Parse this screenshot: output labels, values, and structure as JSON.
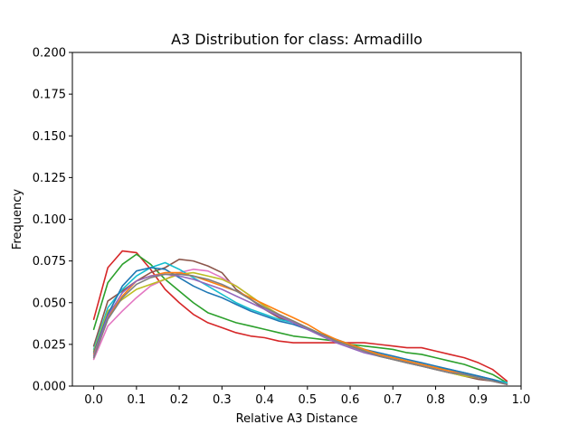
{
  "chart_data": {
    "type": "line",
    "title": "A3 Distribution for class: Armadillo",
    "xlabel": "Relative A3 Distance",
    "ylabel": "Frequency",
    "xlim": [
      -0.05,
      1.0
    ],
    "ylim": [
      0.0,
      0.2
    ],
    "xticks": [
      "0.0",
      "0.1",
      "0.2",
      "0.3",
      "0.4",
      "0.5",
      "0.6",
      "0.7",
      "0.8",
      "0.9",
      "1.0"
    ],
    "yticks": [
      "0.000",
      "0.025",
      "0.050",
      "0.075",
      "0.100",
      "0.125",
      "0.150",
      "0.175",
      "0.200"
    ],
    "grid": false,
    "legend": "none",
    "x": [
      0.0,
      0.033,
      0.067,
      0.1,
      0.133,
      0.167,
      0.2,
      0.233,
      0.267,
      0.3,
      0.333,
      0.367,
      0.4,
      0.433,
      0.467,
      0.5,
      0.533,
      0.567,
      0.6,
      0.633,
      0.667,
      0.7,
      0.733,
      0.767,
      0.8,
      0.833,
      0.867,
      0.9,
      0.933,
      0.967
    ],
    "series": [
      {
        "color": "#d62728",
        "values": [
          0.04,
          0.071,
          0.081,
          0.08,
          0.07,
          0.058,
          0.05,
          0.043,
          0.038,
          0.035,
          0.032,
          0.03,
          0.029,
          0.027,
          0.026,
          0.026,
          0.026,
          0.026,
          0.026,
          0.026,
          0.025,
          0.024,
          0.023,
          0.023,
          0.021,
          0.019,
          0.017,
          0.014,
          0.01,
          0.003
        ]
      },
      {
        "color": "#2ca02c",
        "values": [
          0.034,
          0.062,
          0.073,
          0.079,
          0.073,
          0.064,
          0.057,
          0.05,
          0.044,
          0.041,
          0.038,
          0.036,
          0.034,
          0.032,
          0.03,
          0.029,
          0.028,
          0.027,
          0.025,
          0.024,
          0.023,
          0.022,
          0.02,
          0.019,
          0.017,
          0.015,
          0.013,
          0.01,
          0.007,
          0.002
        ]
      },
      {
        "color": "#8c564b",
        "values": [
          0.024,
          0.051,
          0.057,
          0.063,
          0.068,
          0.071,
          0.076,
          0.075,
          0.072,
          0.068,
          0.058,
          0.052,
          0.046,
          0.041,
          0.038,
          0.035,
          0.031,
          0.028,
          0.024,
          0.021,
          0.018,
          0.016,
          0.014,
          0.012,
          0.01,
          0.008,
          0.006,
          0.004,
          0.003,
          0.001
        ]
      },
      {
        "color": "#e377c2",
        "values": [
          0.016,
          0.036,
          0.045,
          0.053,
          0.06,
          0.064,
          0.068,
          0.07,
          0.069,
          0.065,
          0.06,
          0.054,
          0.048,
          0.043,
          0.039,
          0.035,
          0.031,
          0.027,
          0.024,
          0.021,
          0.019,
          0.017,
          0.015,
          0.013,
          0.011,
          0.009,
          0.008,
          0.006,
          0.004,
          0.001
        ]
      },
      {
        "color": "#17becf",
        "values": [
          0.022,
          0.047,
          0.058,
          0.066,
          0.071,
          0.074,
          0.07,
          0.065,
          0.06,
          0.055,
          0.05,
          0.046,
          0.043,
          0.04,
          0.038,
          0.035,
          0.031,
          0.028,
          0.025,
          0.022,
          0.019,
          0.017,
          0.015,
          0.013,
          0.011,
          0.01,
          0.008,
          0.006,
          0.004,
          0.002
        ]
      },
      {
        "color": "#bcbd22",
        "values": [
          0.021,
          0.045,
          0.052,
          0.058,
          0.061,
          0.064,
          0.067,
          0.068,
          0.066,
          0.064,
          0.06,
          0.054,
          0.048,
          0.043,
          0.039,
          0.035,
          0.031,
          0.028,
          0.024,
          0.021,
          0.018,
          0.016,
          0.014,
          0.012,
          0.01,
          0.008,
          0.006,
          0.005,
          0.003,
          0.001
        ]
      },
      {
        "color": "#1f77b4",
        "values": [
          0.02,
          0.043,
          0.06,
          0.069,
          0.071,
          0.07,
          0.065,
          0.06,
          0.056,
          0.053,
          0.049,
          0.045,
          0.042,
          0.039,
          0.037,
          0.034,
          0.031,
          0.028,
          0.025,
          0.022,
          0.02,
          0.018,
          0.016,
          0.014,
          0.012,
          0.01,
          0.008,
          0.006,
          0.004,
          0.001
        ]
      },
      {
        "color": "#ff7f0e",
        "values": [
          0.019,
          0.041,
          0.054,
          0.063,
          0.066,
          0.068,
          0.068,
          0.066,
          0.063,
          0.06,
          0.057,
          0.053,
          0.049,
          0.045,
          0.041,
          0.037,
          0.032,
          0.028,
          0.025,
          0.022,
          0.019,
          0.017,
          0.015,
          0.013,
          0.011,
          0.009,
          0.007,
          0.005,
          0.003,
          0.001
        ]
      },
      {
        "color": "#9467bd",
        "values": [
          0.018,
          0.042,
          0.056,
          0.063,
          0.066,
          0.067,
          0.066,
          0.064,
          0.061,
          0.058,
          0.054,
          0.05,
          0.046,
          0.042,
          0.038,
          0.034,
          0.03,
          0.026,
          0.023,
          0.02,
          0.018,
          0.016,
          0.014,
          0.012,
          0.01,
          0.008,
          0.007,
          0.005,
          0.003,
          0.001
        ]
      },
      {
        "color": "#7f7f7f",
        "values": [
          0.017,
          0.04,
          0.053,
          0.061,
          0.065,
          0.067,
          0.067,
          0.066,
          0.064,
          0.061,
          0.057,
          0.052,
          0.047,
          0.043,
          0.039,
          0.035,
          0.031,
          0.027,
          0.024,
          0.021,
          0.018,
          0.016,
          0.014,
          0.012,
          0.01,
          0.008,
          0.007,
          0.005,
          0.003,
          0.001
        ]
      }
    ]
  }
}
